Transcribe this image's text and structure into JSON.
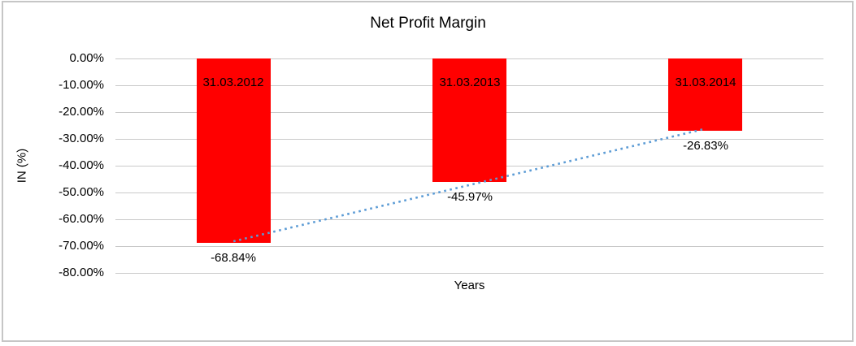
{
  "chart_data": {
    "type": "bar",
    "title": "Net Profit Margin",
    "xlabel": "Years",
    "ylabel": "IN (%)",
    "categories": [
      "31.03.2012",
      "31.03.2013",
      "31.03.2014"
    ],
    "values": [
      -68.84,
      -45.97,
      -26.83
    ],
    "value_labels": [
      "-68.84%",
      "-45.97%",
      "-26.83%"
    ],
    "ylim": [
      -80,
      0
    ],
    "yticks": [
      0,
      -10,
      -20,
      -30,
      -40,
      -50,
      -60,
      -70,
      -80
    ],
    "ytick_labels": [
      "0.00%",
      "-10.00%",
      "-20.00%",
      "-30.00%",
      "-40.00%",
      "-50.00%",
      "-60.00%",
      "-70.00%",
      "-80.00%"
    ],
    "grid": true,
    "legend": false,
    "bar_color": "#FF0000",
    "gridline_color": "#C9C9C9",
    "text_color": "#000000",
    "trendline": {
      "type": "linear",
      "style": "dotted",
      "color": "#5B9BD5"
    }
  }
}
